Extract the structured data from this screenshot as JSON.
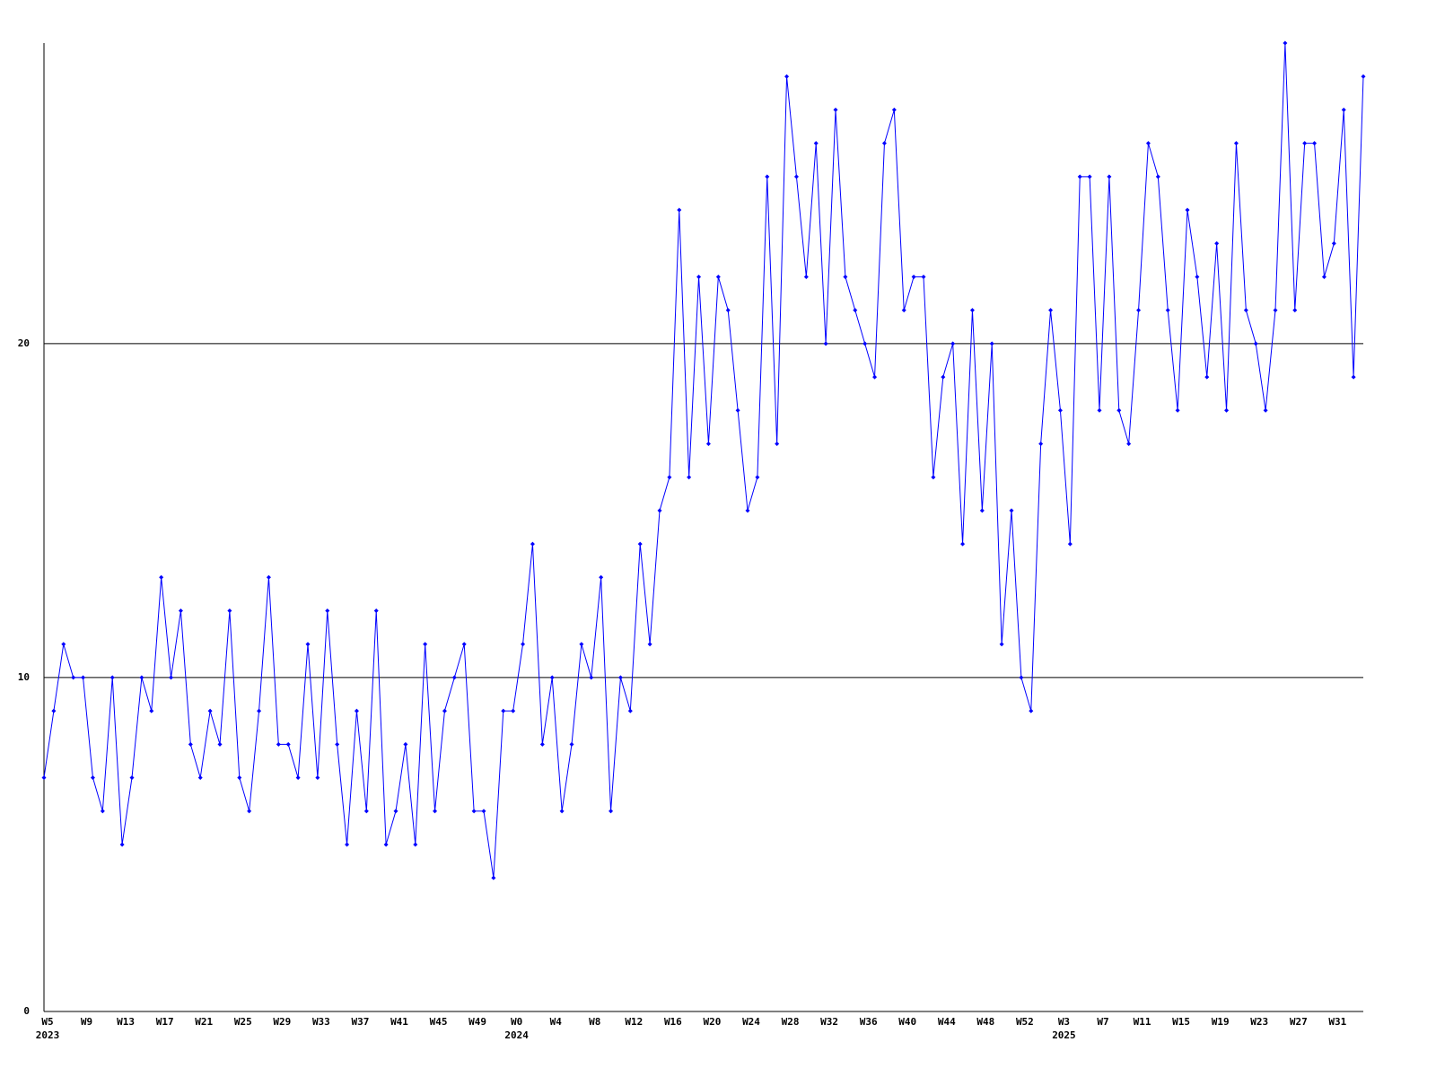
{
  "chart_data": {
    "type": "line",
    "categories": [
      "W5",
      null,
      null,
      null,
      "W9",
      null,
      null,
      null,
      "W13",
      null,
      null,
      null,
      "W17",
      null,
      null,
      null,
      "W21",
      null,
      null,
      null,
      "W25",
      null,
      null,
      null,
      "W29",
      null,
      null,
      null,
      "W33",
      null,
      null,
      null,
      "W37",
      null,
      null,
      null,
      "W41",
      null,
      null,
      null,
      "W45",
      null,
      null,
      null,
      "W49",
      null,
      null,
      null,
      "W0",
      null,
      null,
      null,
      "W4",
      null,
      null,
      null,
      "W8",
      null,
      null,
      null,
      "W12",
      null,
      null,
      null,
      "W16",
      null,
      null,
      null,
      "W20",
      null,
      null,
      null,
      "W24",
      null,
      null,
      null,
      "W28",
      null,
      null,
      null,
      "W32",
      null,
      null,
      null,
      "W36",
      null,
      null,
      null,
      "W40",
      null,
      null,
      null,
      "W44",
      null,
      null,
      null,
      "W48",
      null,
      null,
      null,
      "W52",
      null,
      null,
      null,
      "W3",
      null,
      null,
      null,
      "W7",
      null,
      null,
      null,
      "W11",
      null,
      null,
      null,
      "W15",
      null,
      null,
      null,
      "W19",
      null,
      null,
      null,
      "W23",
      null,
      null,
      null,
      "W27",
      null,
      null,
      null,
      "W31",
      null,
      null,
      null
    ],
    "years": [
      "2023",
      null,
      null,
      null,
      null,
      null,
      null,
      null,
      null,
      null,
      null,
      null,
      null,
      null,
      null,
      null,
      null,
      null,
      null,
      null,
      null,
      null,
      null,
      null,
      null,
      null,
      null,
      null,
      null,
      null,
      null,
      null,
      null,
      null,
      null,
      null,
      null,
      null,
      null,
      null,
      null,
      null,
      null,
      null,
      null,
      null,
      null,
      null,
      "2024",
      null,
      null,
      null,
      null,
      null,
      null,
      null,
      null,
      null,
      null,
      null,
      null,
      null,
      null,
      null,
      null,
      null,
      null,
      null,
      null,
      null,
      null,
      null,
      null,
      null,
      null,
      null,
      null,
      null,
      null,
      null,
      null,
      null,
      null,
      null,
      null,
      null,
      null,
      null,
      null,
      null,
      null,
      null,
      null,
      null,
      null,
      null,
      null,
      null,
      null,
      null,
      null,
      null,
      null,
      null,
      "2025",
      null,
      null,
      null,
      null,
      null,
      null,
      null,
      null,
      null,
      null,
      null,
      null,
      null,
      null,
      null,
      null,
      null,
      null,
      null,
      null,
      null,
      null,
      null,
      null,
      null,
      null,
      null,
      null,
      null,
      null,
      null
    ],
    "series": [
      {
        "color": "#0000ff",
        "values": [
          7,
          9,
          11,
          10,
          10,
          7,
          6,
          10,
          5,
          7,
          10,
          9,
          13,
          10,
          12,
          8,
          7,
          9,
          8,
          12,
          7,
          6,
          9,
          13,
          8,
          8,
          7,
          11,
          7,
          12,
          8,
          5,
          9,
          6,
          12,
          5,
          6,
          8,
          5,
          11,
          6,
          9,
          10,
          11,
          6,
          6,
          4,
          9,
          9,
          11,
          14,
          8,
          10,
          6,
          8,
          11,
          10,
          13,
          6,
          10,
          9,
          14,
          11,
          15,
          16,
          24,
          16,
          22,
          17,
          22,
          21,
          18,
          15,
          16,
          25,
          17,
          28,
          25,
          22,
          26,
          20,
          27,
          22,
          21,
          20,
          19,
          26,
          27,
          21,
          22,
          22,
          16,
          19,
          20,
          14,
          21,
          15,
          20,
          11,
          15,
          10,
          9,
          17,
          21,
          18,
          14,
          25,
          25,
          18,
          25,
          18,
          17,
          21,
          26,
          25,
          21,
          18,
          24,
          22,
          19,
          23,
          18,
          26,
          21,
          20,
          18,
          21,
          29,
          21,
          26,
          26,
          22,
          23,
          27,
          19,
          28
        ]
      }
    ],
    "ylim": [
      0,
      29
    ],
    "yticks": [
      0,
      10,
      20
    ],
    "grid": true
  }
}
